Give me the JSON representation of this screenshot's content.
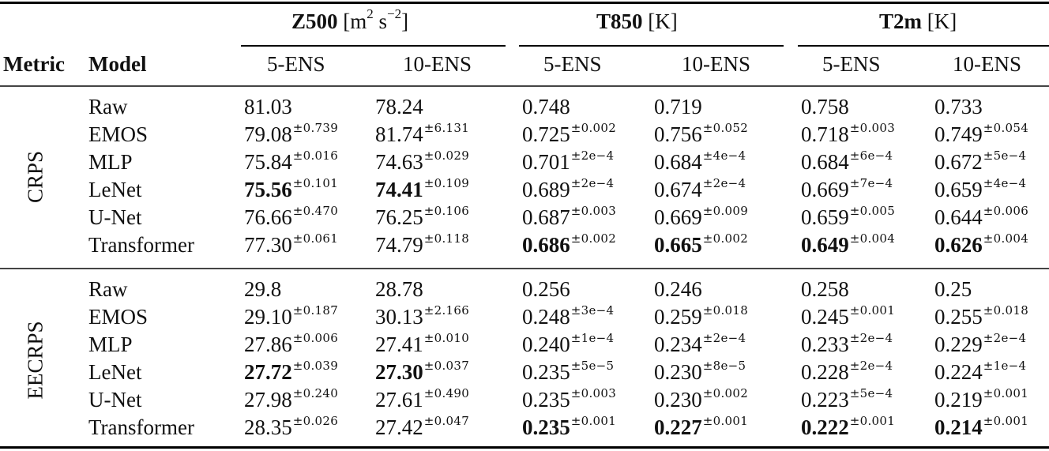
{
  "table": {
    "header": {
      "metric_label": "Metric",
      "model_label": "Model",
      "groups": [
        {
          "name": "Z500",
          "unit_prefix": "[m",
          "unit_sup1": "2",
          "unit_mid": " s",
          "unit_sup2": "−2",
          "unit_suffix": "]"
        },
        {
          "name": "T850",
          "unit": "[K]"
        },
        {
          "name": "T2m",
          "unit": "[K]"
        }
      ],
      "subcolumns": [
        "5-ENS",
        "10-ENS",
        "5-ENS",
        "10-ENS",
        "5-ENS",
        "10-ENS"
      ]
    },
    "sections": [
      {
        "metric": "CRPS",
        "rows": [
          {
            "model": "Raw",
            "cells": [
              {
                "v": "81.03",
                "pm": ""
              },
              {
                "v": "78.24",
                "pm": ""
              },
              {
                "v": "0.748",
                "pm": ""
              },
              {
                "v": "0.719",
                "pm": ""
              },
              {
                "v": "0.758",
                "pm": ""
              },
              {
                "v": "0.733",
                "pm": ""
              }
            ]
          },
          {
            "model": "EMOS",
            "cells": [
              {
                "v": "79.08",
                "pm": "±0.739"
              },
              {
                "v": "81.74",
                "pm": "±6.131"
              },
              {
                "v": "0.725",
                "pm": "±0.002"
              },
              {
                "v": "0.756",
                "pm": "±0.052"
              },
              {
                "v": "0.718",
                "pm": "±0.003"
              },
              {
                "v": "0.749",
                "pm": "±0.054"
              }
            ]
          },
          {
            "model": "MLP",
            "cells": [
              {
                "v": "75.84",
                "pm": "±0.016"
              },
              {
                "v": "74.63",
                "pm": "±0.029"
              },
              {
                "v": "0.701",
                "pm": "±2e−4"
              },
              {
                "v": "0.684",
                "pm": "±4e−4"
              },
              {
                "v": "0.684",
                "pm": "±6e−4"
              },
              {
                "v": "0.672",
                "pm": "±5e−4"
              }
            ]
          },
          {
            "model": "LeNet",
            "cells": [
              {
                "v": "75.56",
                "pm": "±0.101",
                "best": true
              },
              {
                "v": "74.41",
                "pm": "±0.109",
                "best": true
              },
              {
                "v": "0.689",
                "pm": "±2e−4"
              },
              {
                "v": "0.674",
                "pm": "±2e−4"
              },
              {
                "v": "0.669",
                "pm": "±7e−4"
              },
              {
                "v": "0.659",
                "pm": "±4e−4"
              }
            ]
          },
          {
            "model": "U-Net",
            "cells": [
              {
                "v": "76.66",
                "pm": "±0.470"
              },
              {
                "v": "76.25",
                "pm": "±0.106"
              },
              {
                "v": "0.687",
                "pm": "±0.003"
              },
              {
                "v": "0.669",
                "pm": "±0.009"
              },
              {
                "v": "0.659",
                "pm": "±0.005"
              },
              {
                "v": "0.644",
                "pm": "±0.006"
              }
            ]
          },
          {
            "model": "Transformer",
            "cells": [
              {
                "v": "77.30",
                "pm": "±0.061"
              },
              {
                "v": "74.79",
                "pm": "±0.118"
              },
              {
                "v": "0.686",
                "pm": "±0.002",
                "best": true
              },
              {
                "v": "0.665",
                "pm": "±0.002",
                "best": true
              },
              {
                "v": "0.649",
                "pm": "±0.004",
                "best": true
              },
              {
                "v": "0.626",
                "pm": "±0.004",
                "best": true
              }
            ]
          }
        ]
      },
      {
        "metric": "EECRPS",
        "rows": [
          {
            "model": "Raw",
            "cells": [
              {
                "v": "29.8",
                "pm": ""
              },
              {
                "v": "28.78",
                "pm": ""
              },
              {
                "v": "0.256",
                "pm": ""
              },
              {
                "v": "0.246",
                "pm": ""
              },
              {
                "v": "0.258",
                "pm": ""
              },
              {
                "v": "0.25",
                "pm": ""
              }
            ]
          },
          {
            "model": "EMOS",
            "cells": [
              {
                "v": "29.10",
                "pm": "±0.187"
              },
              {
                "v": "30.13",
                "pm": "±2.166"
              },
              {
                "v": "0.248",
                "pm": "±3e−4"
              },
              {
                "v": "0.259",
                "pm": "±0.018"
              },
              {
                "v": "0.245",
                "pm": "±0.001"
              },
              {
                "v": "0.255",
                "pm": "±0.018"
              }
            ]
          },
          {
            "model": "MLP",
            "cells": [
              {
                "v": "27.86",
                "pm": "±0.006"
              },
              {
                "v": "27.41",
                "pm": "±0.010"
              },
              {
                "v": "0.240",
                "pm": "±1e−4"
              },
              {
                "v": "0.234",
                "pm": "±2e−4"
              },
              {
                "v": "0.233",
                "pm": "±2e−4"
              },
              {
                "v": "0.229",
                "pm": "±2e−4"
              }
            ]
          },
          {
            "model": "LeNet",
            "cells": [
              {
                "v": "27.72",
                "pm": "±0.039",
                "best": true
              },
              {
                "v": "27.30",
                "pm": "±0.037",
                "best": true
              },
              {
                "v": "0.235",
                "pm": "±5e−5"
              },
              {
                "v": "0.230",
                "pm": "±8e−5"
              },
              {
                "v": "0.228",
                "pm": "±2e−4"
              },
              {
                "v": "0.224",
                "pm": "±1e−4"
              }
            ]
          },
          {
            "model": "U-Net",
            "cells": [
              {
                "v": "27.98",
                "pm": "±0.240"
              },
              {
                "v": "27.61",
                "pm": "±0.490"
              },
              {
                "v": "0.235",
                "pm": "±0.003"
              },
              {
                "v": "0.230",
                "pm": "±0.002"
              },
              {
                "v": "0.223",
                "pm": "±5e−4"
              },
              {
                "v": "0.219",
                "pm": "±0.001"
              }
            ]
          },
          {
            "model": "Transformer",
            "cells": [
              {
                "v": "28.35",
                "pm": "±0.026"
              },
              {
                "v": "27.42",
                "pm": "±0.047"
              },
              {
                "v": "0.235",
                "pm": "±0.001",
                "best": true
              },
              {
                "v": "0.227",
                "pm": "±0.001",
                "best": true
              },
              {
                "v": "0.222",
                "pm": "±0.001",
                "best": true
              },
              {
                "v": "0.214",
                "pm": "±0.001",
                "best": true
              }
            ]
          }
        ]
      }
    ]
  },
  "chart_data": {
    "type": "table",
    "title": "",
    "columns": [
      "Metric",
      "Model",
      "Z500 5-ENS",
      "Z500 10-ENS",
      "T850 5-ENS",
      "T850 10-ENS",
      "T2m 5-ENS",
      "T2m 10-ENS"
    ],
    "units": {
      "Z500": "m^2 s^-2",
      "T850": "K",
      "T2m": "K"
    },
    "rows": [
      [
        "CRPS",
        "Raw",
        "81.03",
        "78.24",
        "0.748",
        "0.719",
        "0.758",
        "0.733"
      ],
      [
        "CRPS",
        "EMOS",
        "79.08±0.739",
        "81.74±6.131",
        "0.725±0.002",
        "0.756±0.052",
        "0.718±0.003",
        "0.749±0.054"
      ],
      [
        "CRPS",
        "MLP",
        "75.84±0.016",
        "74.63±0.029",
        "0.701±2e-4",
        "0.684±4e-4",
        "0.684±6e-4",
        "0.672±5e-4"
      ],
      [
        "CRPS",
        "LeNet",
        "75.56±0.101",
        "74.41±0.109",
        "0.689±2e-4",
        "0.674±2e-4",
        "0.669±7e-4",
        "0.659±4e-4"
      ],
      [
        "CRPS",
        "U-Net",
        "76.66±0.470",
        "76.25±0.106",
        "0.687±0.003",
        "0.669±0.009",
        "0.659±0.005",
        "0.644±0.006"
      ],
      [
        "CRPS",
        "Transformer",
        "77.30±0.061",
        "74.79±0.118",
        "0.686±0.002",
        "0.665±0.002",
        "0.649±0.004",
        "0.626±0.004"
      ],
      [
        "EECRPS",
        "Raw",
        "29.8",
        "28.78",
        "0.256",
        "0.246",
        "0.258",
        "0.25"
      ],
      [
        "EECRPS",
        "EMOS",
        "29.10±0.187",
        "30.13±2.166",
        "0.248±3e-4",
        "0.259±0.018",
        "0.245±0.001",
        "0.255±0.018"
      ],
      [
        "EECRPS",
        "MLP",
        "27.86±0.006",
        "27.41±0.010",
        "0.240±1e-4",
        "0.234±2e-4",
        "0.233±2e-4",
        "0.229±2e-4"
      ],
      [
        "EECRPS",
        "LeNet",
        "27.72±0.039",
        "27.30±0.037",
        "0.235±5e-5",
        "0.230±8e-5",
        "0.228±2e-4",
        "0.224±1e-4"
      ],
      [
        "EECRPS",
        "U-Net",
        "27.98±0.240",
        "27.61±0.490",
        "0.235±0.003",
        "0.230±0.002",
        "0.223±5e-4",
        "0.219±0.001"
      ],
      [
        "EECRPS",
        "Transformer",
        "28.35±0.026",
        "27.42±0.047",
        "0.235±0.001",
        "0.227±0.001",
        "0.222±0.001",
        "0.214±0.001"
      ]
    ],
    "bold_best": [
      "CRPS LeNet Z500 5-ENS",
      "CRPS LeNet Z500 10-ENS",
      "CRPS Transformer T850 5-ENS",
      "CRPS Transformer T850 10-ENS",
      "CRPS Transformer T2m 5-ENS",
      "CRPS Transformer T2m 10-ENS",
      "EECRPS LeNet Z500 5-ENS",
      "EECRPS LeNet Z500 10-ENS",
      "EECRPS Transformer T850 5-ENS",
      "EECRPS Transformer T850 10-ENS",
      "EECRPS Transformer T2m 5-ENS",
      "EECRPS Transformer T2m 10-ENS"
    ]
  }
}
